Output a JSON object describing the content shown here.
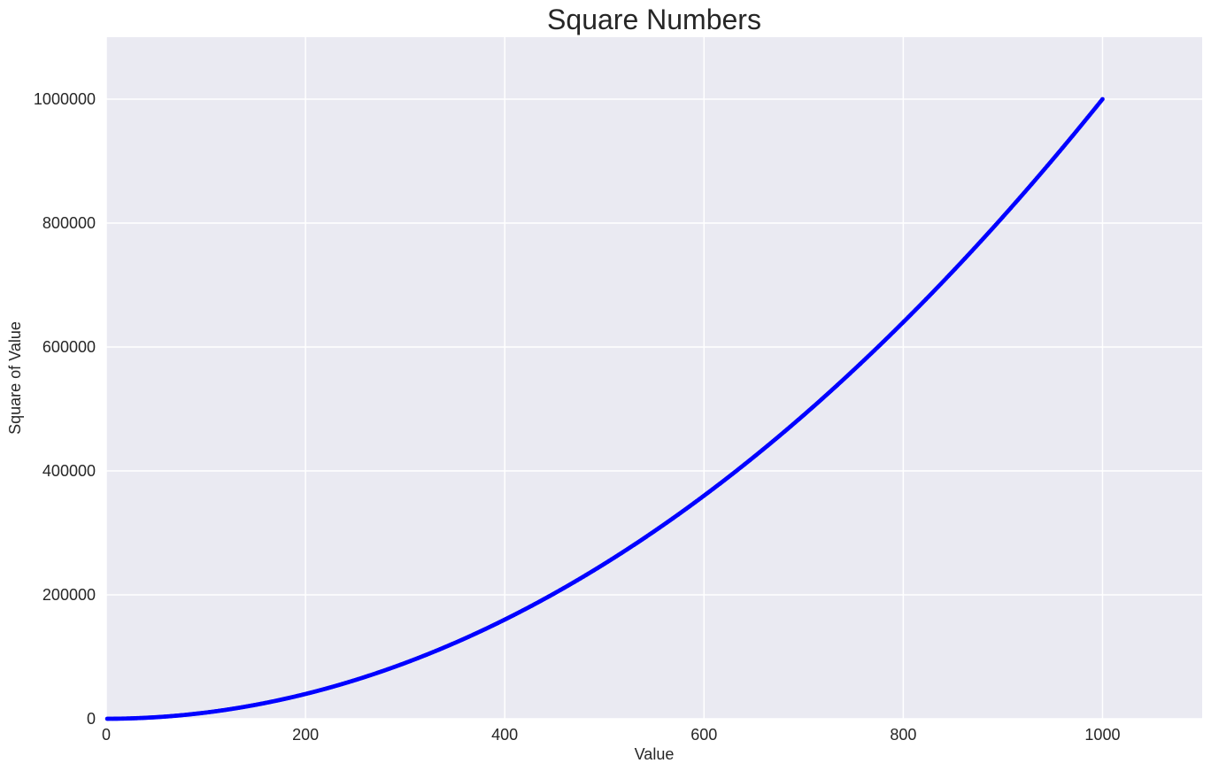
{
  "chart_data": {
    "type": "scatter",
    "title": "Square Numbers",
    "xlabel": "Value",
    "ylabel": "Square of Value",
    "xlim": [
      0,
      1100
    ],
    "ylim": [
      0,
      1100000
    ],
    "x_ticks": [
      0,
      200,
      400,
      600,
      800,
      1000
    ],
    "y_ticks": [
      0,
      200000,
      400000,
      600000,
      800000,
      1000000
    ],
    "x_tick_labels": [
      "0",
      "200",
      "400",
      "600",
      "800",
      "1000"
    ],
    "y_tick_labels": [
      "0",
      "200000",
      "400000",
      "600000",
      "800000",
      "1000000"
    ],
    "grid": true,
    "legend": "none",
    "series": [
      {
        "formula": "y = x^2",
        "x_range": [
          1,
          1000
        ],
        "step": 1,
        "color": "#0000ff"
      }
    ],
    "sample_points": [
      {
        "x": 100,
        "y": 10000
      },
      {
        "x": 200,
        "y": 40000
      },
      {
        "x": 300,
        "y": 90000
      },
      {
        "x": 400,
        "y": 160000
      },
      {
        "x": 500,
        "y": 250000
      },
      {
        "x": 600,
        "y": 360000
      },
      {
        "x": 700,
        "y": 490000
      },
      {
        "x": 800,
        "y": 640000
      },
      {
        "x": 900,
        "y": 810000
      },
      {
        "x": 1000,
        "y": 1000000
      }
    ]
  },
  "colors": {
    "plot_background": "#eaeaf2",
    "grid": "#ffffff",
    "text": "#262626",
    "points": "#0000ff"
  }
}
